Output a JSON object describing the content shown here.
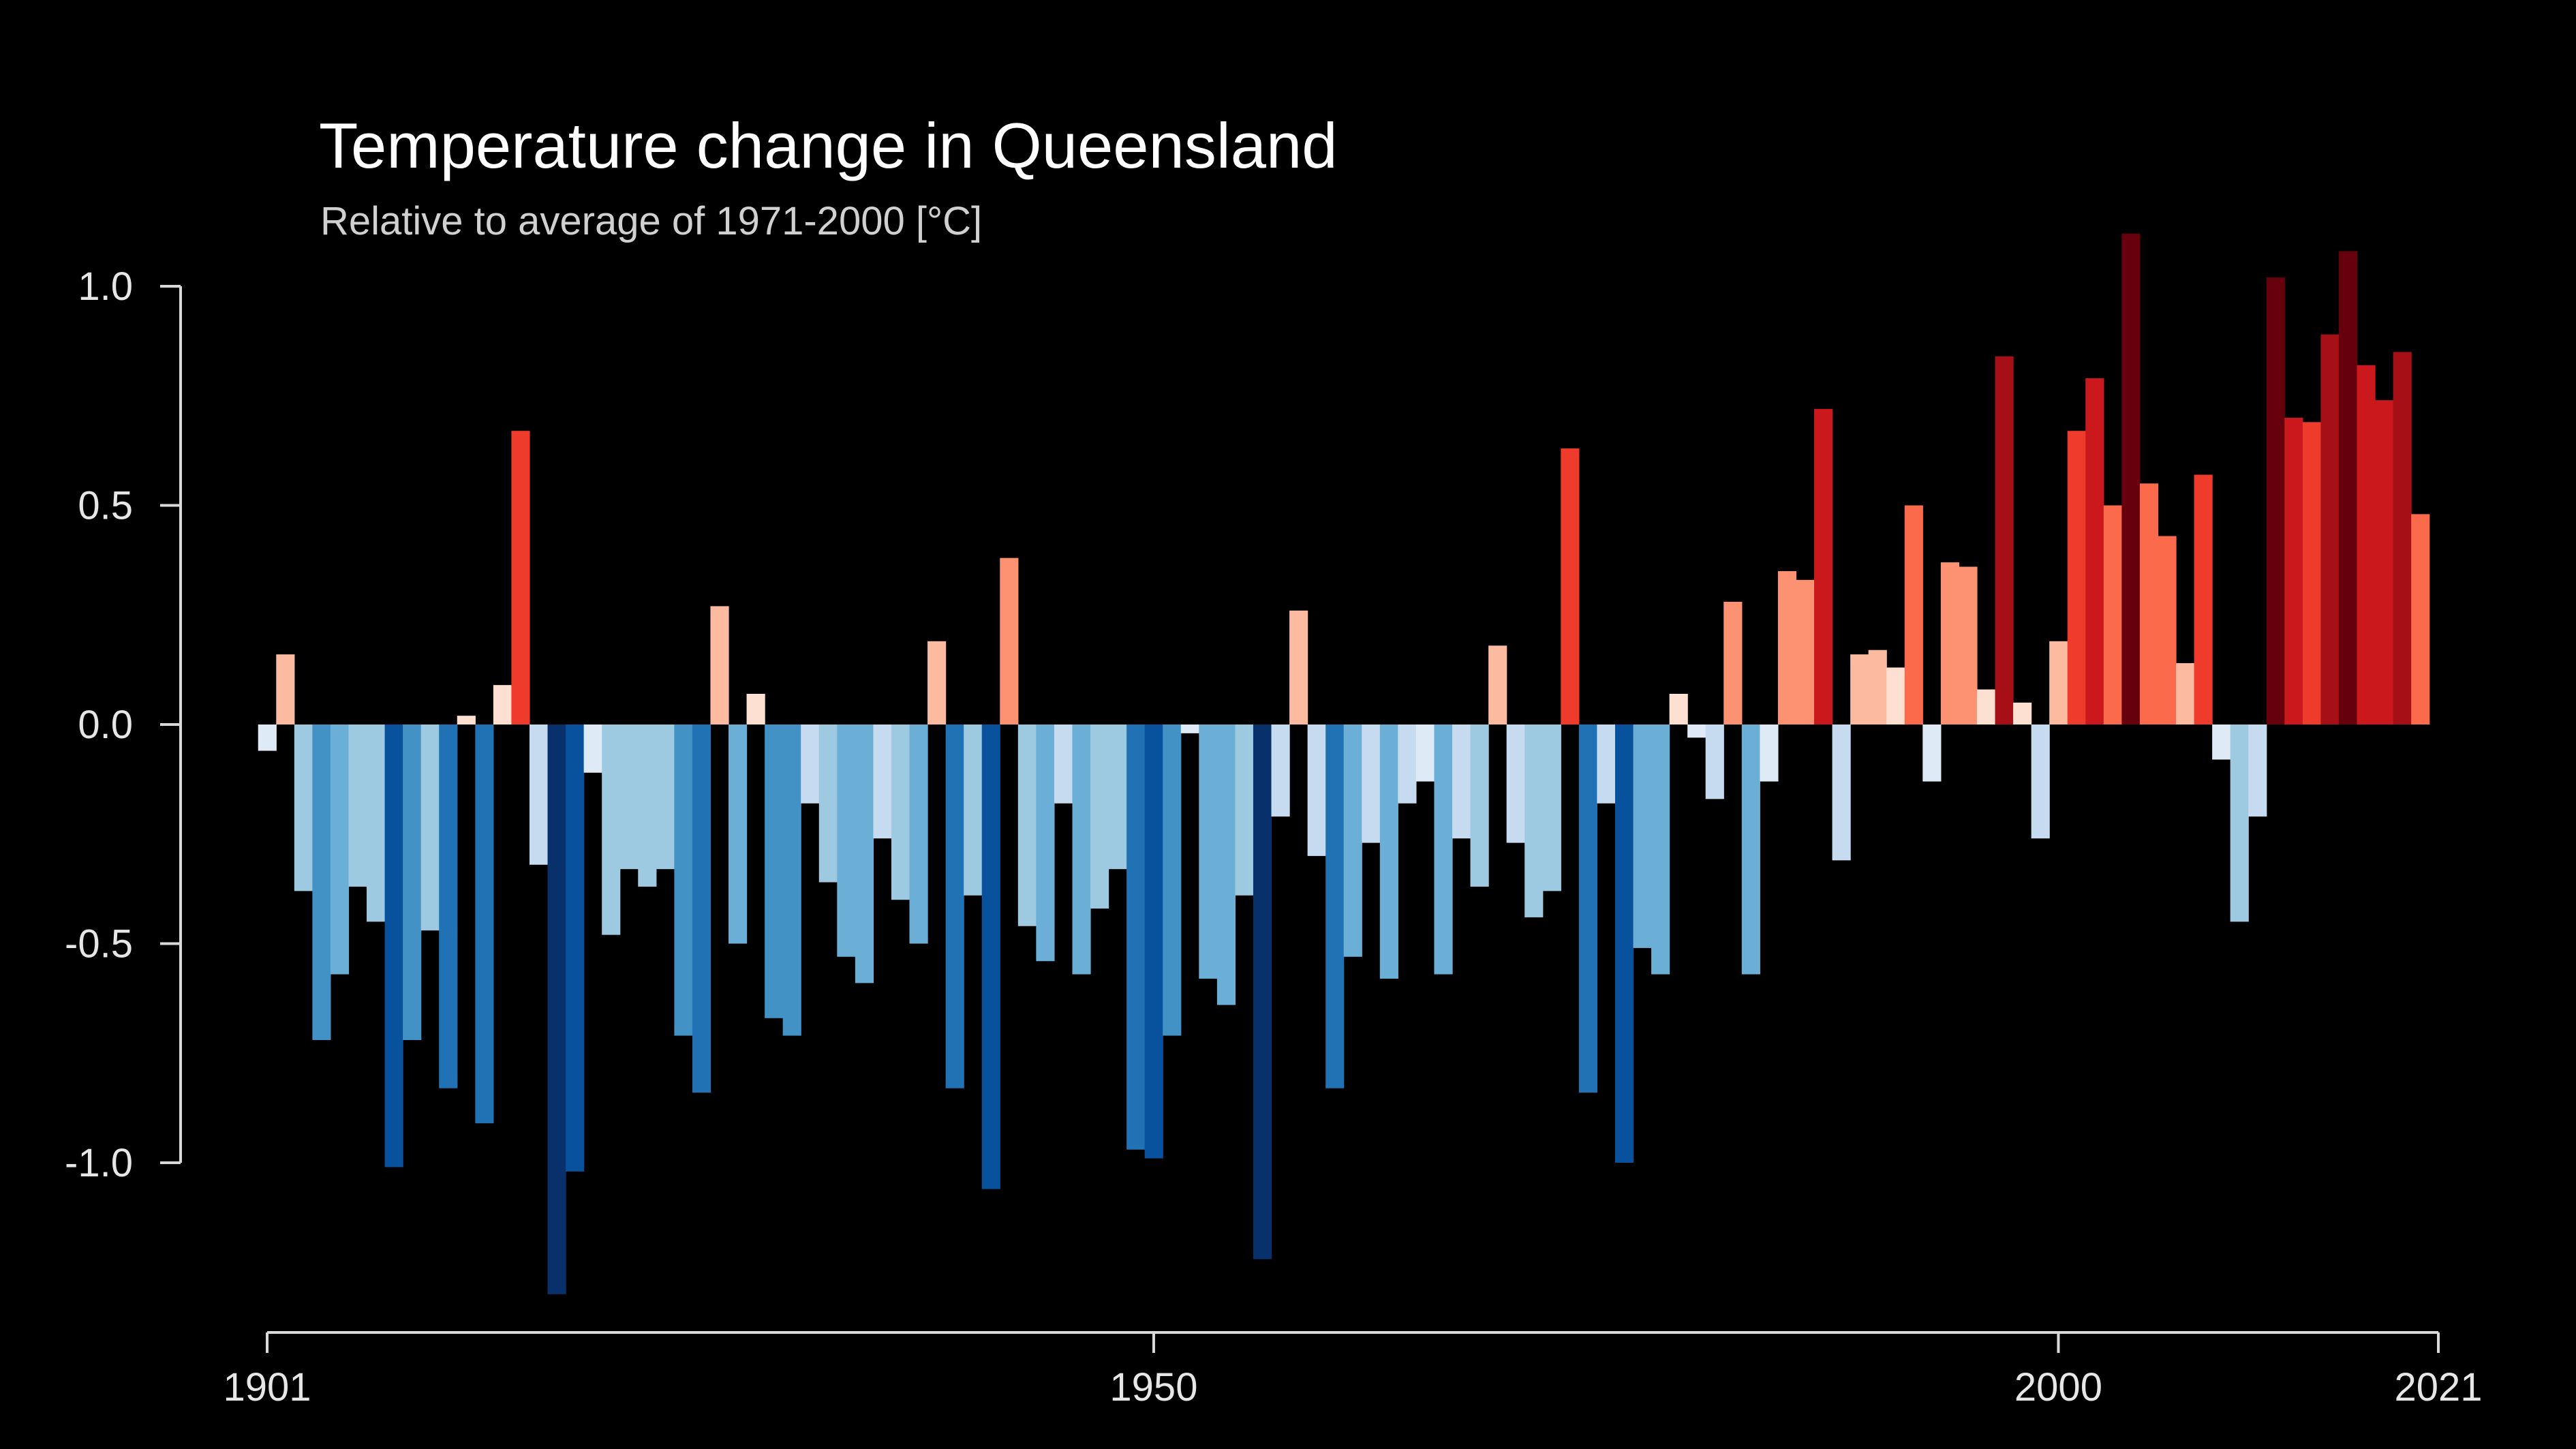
{
  "chart_data": {
    "type": "bar",
    "title": "Temperature change in Queensland",
    "subtitle": "Relative to average of 1971-2000  [°C]",
    "xlabel": "",
    "ylabel": "",
    "x_start": 1901,
    "x_end": 2021,
    "xlim": [
      1901,
      2021
    ],
    "ylim": [
      -1.3,
      1.1
    ],
    "x_ticks": [
      1901,
      1950,
      2000,
      2021
    ],
    "x_tick_labels": [
      "1901",
      "1950",
      "2000",
      "2021"
    ],
    "y_ticks": [
      1.0,
      0.5,
      0.0,
      -0.5,
      -1.0
    ],
    "y_tick_labels": [
      "1.0",
      "0.5",
      "0.0",
      "-0.5",
      "-1.0"
    ],
    "grid": false,
    "legend": "none",
    "color_scale": "warming stripes (blue = cooler, red = warmer)",
    "colors": {
      "background": "#000000",
      "axis": "#d9d9d9",
      "text": "#ffffff",
      "subtext": "#d0d0d0",
      "scale": [
        "#08306b",
        "#08519c",
        "#2171b5",
        "#4292c6",
        "#6baed6",
        "#9ecae1",
        "#c6dbef",
        "#deebf7",
        "#fee0d2",
        "#fcbba1",
        "#fc9272",
        "#fb6a4a",
        "#ef3b2c",
        "#cb181d",
        "#a50f15",
        "#67000d"
      ]
    },
    "values": [
      -0.06,
      0.16,
      -0.38,
      -0.72,
      -0.57,
      -0.37,
      -0.45,
      -1.01,
      -0.72,
      -0.47,
      -0.83,
      0.02,
      -0.91,
      0.09,
      0.67,
      -0.32,
      -1.3,
      -1.02,
      -0.11,
      -0.48,
      -0.33,
      -0.37,
      -0.33,
      -0.71,
      -0.84,
      0.27,
      -0.5,
      0.07,
      -0.67,
      -0.71,
      -0.18,
      -0.36,
      -0.53,
      -0.59,
      -0.26,
      -0.4,
      -0.5,
      0.19,
      -0.83,
      -0.39,
      -1.06,
      0.38,
      -0.46,
      -0.54,
      -0.18,
      -0.57,
      -0.42,
      -0.33,
      -0.97,
      -0.99,
      -0.71,
      -0.02,
      -0.58,
      -0.64,
      -0.39,
      -1.22,
      -0.21,
      0.26,
      -0.3,
      -0.83,
      -0.53,
      -0.27,
      -0.58,
      -0.18,
      -0.13,
      -0.57,
      -0.26,
      -0.37,
      0.18,
      -0.27,
      -0.44,
      -0.38,
      0.63,
      -0.84,
      -0.18,
      -1.0,
      -0.51,
      -0.57,
      0.07,
      -0.03,
      -0.17,
      0.28,
      -0.57,
      -0.13,
      0.35,
      0.33,
      0.72,
      -0.31,
      0.16,
      0.17,
      0.13,
      0.5,
      -0.13,
      0.37,
      0.36,
      0.08,
      0.84,
      0.05,
      -0.26,
      0.19,
      0.67,
      0.79,
      0.5,
      1.12,
      0.55,
      0.43,
      0.14,
      0.57,
      -0.08,
      -0.45,
      -0.21,
      1.02,
      0.7,
      0.69,
      0.89,
      1.08,
      0.82,
      0.74,
      0.85,
      0.48
    ]
  }
}
